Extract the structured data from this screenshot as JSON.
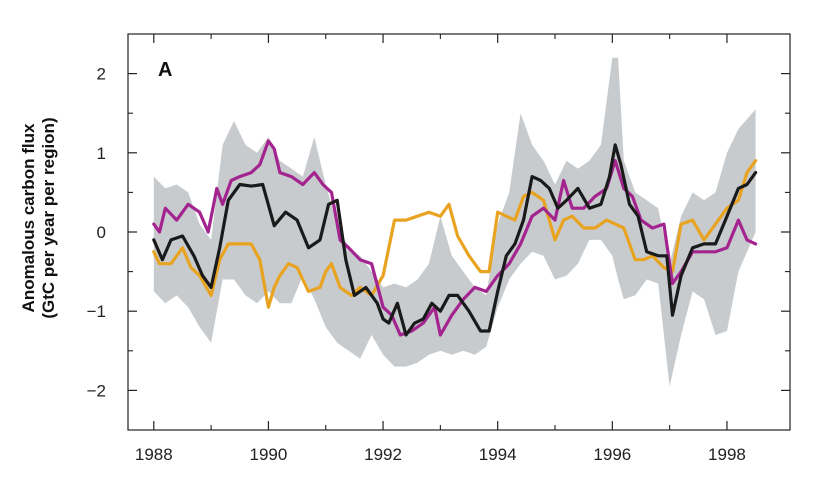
{
  "chart_data": {
    "type": "line",
    "panel_label": "A",
    "title": "",
    "xlabel": "",
    "ylabel_lines": [
      "Anomalous carbon flux",
      "(GtC per year per region)"
    ],
    "xlim": [
      1987.55,
      1999.1
    ],
    "ylim": [
      -2.5,
      2.5
    ],
    "x_ticks": [
      1988,
      1990,
      1992,
      1994,
      1996,
      1998
    ],
    "x_tick_labels": [
      "1988",
      "1990",
      "1992",
      "1994",
      "1996",
      "1998"
    ],
    "x_minor_ticks": [
      1989,
      1991,
      1993,
      1995,
      1997
    ],
    "y_ticks": [
      2,
      1,
      0,
      -1,
      -2
    ],
    "y_tick_labels": [
      "2",
      "1",
      "0",
      "−1",
      "−2"
    ],
    "y_minor_ticks": [
      1.5,
      0.5,
      -0.5,
      -1.5
    ],
    "grid": false,
    "uncertainty_band": {
      "color": "#c8cbce",
      "x": [
        1988.0,
        1988.2,
        1988.4,
        1988.6,
        1988.8,
        1989.0,
        1989.2,
        1989.4,
        1989.6,
        1989.8,
        1990.0,
        1990.2,
        1990.4,
        1990.6,
        1990.8,
        1991.0,
        1991.2,
        1991.4,
        1991.6,
        1991.8,
        1992.0,
        1992.2,
        1992.4,
        1992.6,
        1992.8,
        1993.0,
        1993.2,
        1993.4,
        1993.6,
        1993.8,
        1994.0,
        1994.2,
        1994.4,
        1994.6,
        1994.8,
        1995.0,
        1995.2,
        1995.4,
        1995.6,
        1995.8,
        1996.0,
        1996.1,
        1996.2,
        1996.4,
        1996.6,
        1996.8,
        1997.0,
        1997.2,
        1997.4,
        1997.6,
        1997.8,
        1998.0,
        1998.2,
        1998.5
      ],
      "upper": [
        0.7,
        0.55,
        0.6,
        0.5,
        0.1,
        -0.1,
        1.1,
        1.4,
        1.1,
        1.0,
        1.2,
        0.9,
        0.8,
        0.7,
        1.2,
        0.6,
        0.1,
        -0.2,
        -0.3,
        -0.5,
        -0.7,
        -0.65,
        -0.7,
        -0.6,
        -0.4,
        0.2,
        -0.3,
        -0.5,
        -0.7,
        -0.8,
        0.1,
        0.5,
        1.5,
        1.1,
        0.9,
        0.6,
        0.9,
        0.8,
        0.9,
        1.1,
        2.2,
        2.2,
        0.9,
        0.5,
        0.4,
        0.3,
        -0.4,
        0.2,
        0.5,
        0.4,
        0.5,
        1.0,
        1.3,
        1.55
      ],
      "lower": [
        -0.75,
        -0.9,
        -0.8,
        -0.95,
        -1.2,
        -1.4,
        -0.6,
        -0.6,
        -0.8,
        -0.9,
        -0.75,
        -0.9,
        -0.9,
        -0.55,
        -0.85,
        -1.2,
        -1.4,
        -1.5,
        -1.6,
        -1.3,
        -1.55,
        -1.7,
        -1.7,
        -1.65,
        -1.55,
        -1.5,
        -1.55,
        -1.5,
        -1.55,
        -1.45,
        -0.95,
        -0.6,
        -0.4,
        -0.25,
        -0.3,
        -0.6,
        -0.55,
        -0.4,
        -0.1,
        -0.1,
        -0.3,
        -0.6,
        -0.85,
        -0.8,
        -0.6,
        -0.65,
        -1.95,
        -1.3,
        -0.75,
        -0.85,
        -1.3,
        -1.25,
        -0.5,
        0.0
      ]
    },
    "series": [
      {
        "color": "#1a1a1a",
        "x": [
          1988.0,
          1988.15,
          1988.3,
          1988.5,
          1988.7,
          1988.85,
          1989.0,
          1989.15,
          1989.3,
          1989.5,
          1989.7,
          1989.9,
          1990.1,
          1990.3,
          1990.5,
          1990.7,
          1990.9,
          1991.05,
          1991.2,
          1991.35,
          1991.5,
          1991.7,
          1991.9,
          1992.0,
          1992.1,
          1992.25,
          1992.4,
          1992.55,
          1992.7,
          1992.85,
          1993.0,
          1993.15,
          1993.3,
          1993.5,
          1993.7,
          1993.85,
          1994.0,
          1994.15,
          1994.3,
          1994.45,
          1994.6,
          1994.75,
          1994.9,
          1995.05,
          1995.2,
          1995.4,
          1995.6,
          1995.8,
          1995.95,
          1996.05,
          1996.15,
          1996.3,
          1996.45,
          1996.6,
          1996.8,
          1996.95,
          1997.05,
          1997.2,
          1997.4,
          1997.6,
          1997.8,
          1998.0,
          1998.2,
          1998.35,
          1998.5
        ],
        "y": [
          -0.1,
          -0.35,
          -0.1,
          -0.05,
          -0.3,
          -0.55,
          -0.7,
          -0.2,
          0.4,
          0.6,
          0.58,
          0.6,
          0.08,
          0.25,
          0.15,
          -0.2,
          -0.1,
          0.35,
          0.4,
          -0.35,
          -0.8,
          -0.7,
          -0.9,
          -1.1,
          -1.15,
          -0.9,
          -1.3,
          -1.15,
          -1.1,
          -0.9,
          -1.0,
          -0.8,
          -0.8,
          -1.0,
          -1.25,
          -1.25,
          -0.75,
          -0.3,
          -0.15,
          0.15,
          0.7,
          0.65,
          0.55,
          0.3,
          0.4,
          0.55,
          0.3,
          0.35,
          0.7,
          1.1,
          0.85,
          0.35,
          0.2,
          -0.25,
          -0.3,
          -0.3,
          -1.05,
          -0.55,
          -0.2,
          -0.15,
          -0.15,
          0.2,
          0.55,
          0.6,
          0.75
        ]
      },
      {
        "color": "#a3248f",
        "x": [
          1988.0,
          1988.1,
          1988.2,
          1988.4,
          1988.6,
          1988.8,
          1988.95,
          1989.1,
          1989.2,
          1989.35,
          1989.5,
          1989.7,
          1989.85,
          1990.0,
          1990.1,
          1990.2,
          1990.4,
          1990.6,
          1990.8,
          1990.95,
          1991.1,
          1991.25,
          1991.4,
          1991.6,
          1991.8,
          1992.0,
          1992.15,
          1992.3,
          1992.5,
          1992.7,
          1992.9,
          1993.0,
          1993.2,
          1993.4,
          1993.6,
          1993.8,
          1994.0,
          1994.2,
          1994.4,
          1994.6,
          1994.8,
          1995.0,
          1995.15,
          1995.3,
          1995.5,
          1995.7,
          1995.9,
          1996.05,
          1996.2,
          1996.35,
          1996.5,
          1996.7,
          1996.9,
          1997.05,
          1997.2,
          1997.4,
          1997.6,
          1997.8,
          1998.0,
          1998.2,
          1998.35,
          1998.5
        ],
        "y": [
          0.1,
          0.0,
          0.3,
          0.15,
          0.35,
          0.25,
          0.0,
          0.55,
          0.35,
          0.65,
          0.7,
          0.75,
          0.85,
          1.15,
          1.05,
          0.75,
          0.7,
          0.6,
          0.75,
          0.6,
          0.5,
          -0.1,
          -0.2,
          -0.35,
          -0.4,
          -0.95,
          -1.05,
          -1.3,
          -1.25,
          -1.15,
          -0.95,
          -1.3,
          -1.05,
          -0.85,
          -0.7,
          -0.75,
          -0.55,
          -0.4,
          -0.15,
          0.2,
          0.3,
          0.15,
          0.65,
          0.3,
          0.3,
          0.45,
          0.55,
          0.9,
          0.55,
          0.45,
          0.15,
          0.05,
          0.1,
          -0.65,
          -0.5,
          -0.25,
          -0.25,
          -0.25,
          -0.2,
          0.15,
          -0.1,
          -0.15
        ]
      },
      {
        "color": "#e8a320",
        "x": [
          1988.0,
          1988.1,
          1988.3,
          1988.5,
          1988.65,
          1988.8,
          1989.0,
          1989.15,
          1989.3,
          1989.5,
          1989.7,
          1989.85,
          1990.0,
          1990.1,
          1990.2,
          1990.35,
          1990.5,
          1990.7,
          1990.9,
          1991.0,
          1991.1,
          1991.25,
          1991.45,
          1991.6,
          1991.8,
          1992.0,
          1992.2,
          1992.4,
          1992.6,
          1992.8,
          1993.0,
          1993.15,
          1993.3,
          1993.5,
          1993.7,
          1993.85,
          1994.0,
          1994.15,
          1994.3,
          1994.45,
          1994.6,
          1994.8,
          1995.0,
          1995.15,
          1995.3,
          1995.5,
          1995.7,
          1995.9,
          1996.05,
          1996.2,
          1996.4,
          1996.55,
          1996.7,
          1996.9,
          1997.05,
          1997.2,
          1997.4,
          1997.6,
          1997.8,
          1998.0,
          1998.2,
          1998.35,
          1998.5
        ],
        "y": [
          -0.25,
          -0.4,
          -0.4,
          -0.2,
          -0.45,
          -0.55,
          -0.8,
          -0.35,
          -0.15,
          -0.15,
          -0.15,
          -0.35,
          -0.95,
          -0.7,
          -0.55,
          -0.4,
          -0.45,
          -0.75,
          -0.7,
          -0.5,
          -0.4,
          -0.7,
          -0.8,
          -0.7,
          -0.8,
          -0.55,
          0.15,
          0.15,
          0.2,
          0.25,
          0.2,
          0.35,
          -0.05,
          -0.3,
          -0.5,
          -0.5,
          0.25,
          0.2,
          0.15,
          0.45,
          0.5,
          0.4,
          -0.1,
          0.15,
          0.2,
          0.05,
          0.05,
          0.15,
          0.1,
          0.05,
          -0.35,
          -0.35,
          -0.3,
          -0.45,
          -0.5,
          0.1,
          0.15,
          -0.1,
          0.1,
          0.3,
          0.4,
          0.75,
          0.9
        ]
      }
    ]
  }
}
